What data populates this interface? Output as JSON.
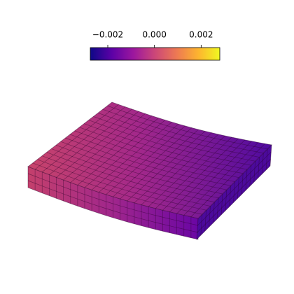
{
  "chart_data": {
    "type": "mesh3d",
    "colormap": "plasma",
    "clim": [
      -0.00275,
      0.0028
    ],
    "cticks": [
      {
        "value": -0.002,
        "label": "−0.002"
      },
      {
        "value": 0,
        "label": "0.000"
      },
      {
        "value": 0.002,
        "label": "0.002"
      }
    ]
  }
}
